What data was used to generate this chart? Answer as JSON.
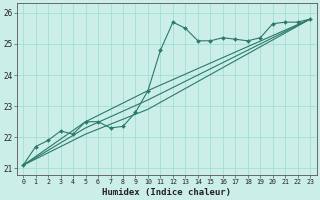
{
  "xlabel": "Humidex (Indice chaleur)",
  "bg_color": "#cceee8",
  "grid_color": "#99ddcc",
  "line_color": "#2a7a6a",
  "xlim": [
    -0.5,
    23.5
  ],
  "ylim": [
    20.8,
    26.3
  ],
  "yticks": [
    21,
    22,
    23,
    24,
    25,
    26
  ],
  "xticks": [
    0,
    1,
    2,
    3,
    4,
    5,
    6,
    7,
    8,
    9,
    10,
    11,
    12,
    13,
    14,
    15,
    16,
    17,
    18,
    19,
    20,
    21,
    22,
    23
  ],
  "main_series": {
    "x": [
      0,
      1,
      2,
      3,
      4,
      5,
      6,
      7,
      8,
      9,
      10,
      11,
      12,
      13,
      14,
      15,
      16,
      17,
      18,
      19,
      20,
      21,
      22,
      23
    ],
    "y": [
      21.1,
      21.7,
      21.9,
      22.2,
      22.1,
      22.5,
      22.5,
      22.3,
      22.35,
      22.8,
      23.5,
      24.8,
      25.7,
      25.5,
      25.1,
      25.1,
      25.2,
      25.15,
      25.1,
      25.2,
      25.65,
      25.7,
      25.7,
      25.8
    ]
  },
  "extra_lines": [
    {
      "x": [
        0,
        5,
        10,
        23
      ],
      "y": [
        21.1,
        22.5,
        23.5,
        25.8
      ]
    },
    {
      "x": [
        0,
        5,
        10,
        23
      ],
      "y": [
        21.1,
        22.3,
        23.2,
        25.8
      ]
    },
    {
      "x": [
        0,
        5,
        10,
        23
      ],
      "y": [
        21.1,
        22.1,
        22.9,
        25.8
      ]
    }
  ]
}
